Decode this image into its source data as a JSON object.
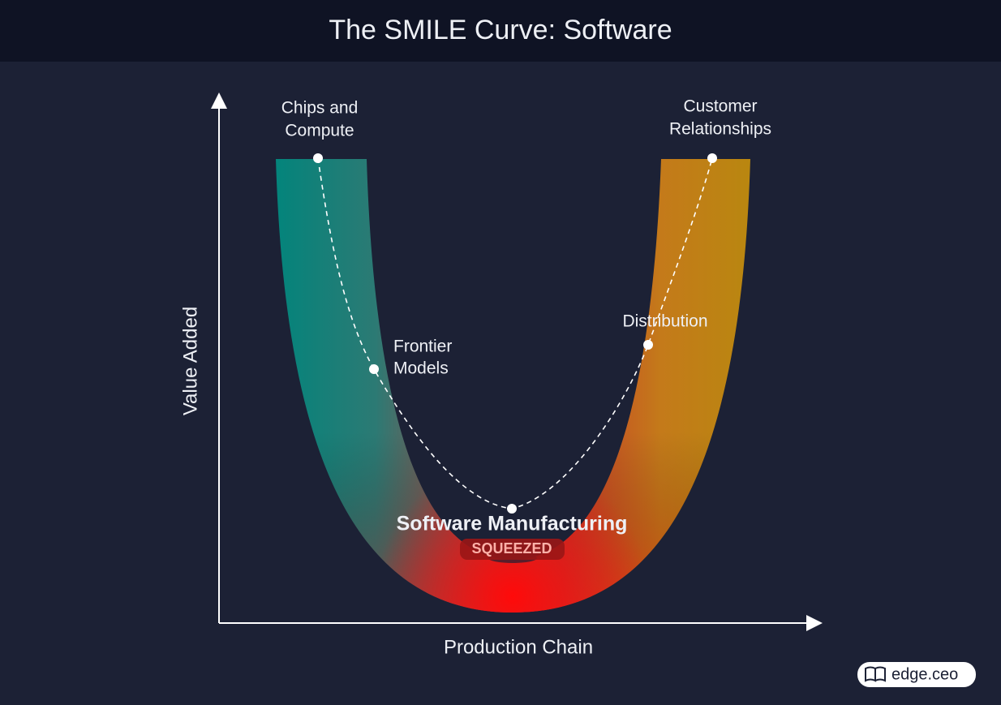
{
  "title": "The SMILE Curve: Software",
  "axes": {
    "y_label": "Value Added",
    "x_label": "Production Chain"
  },
  "stages": [
    {
      "lines": [
        "Chips and",
        "Compute"
      ]
    },
    {
      "lines": [
        "Frontier",
        "Models"
      ]
    },
    {
      "lines": [
        "Software Manufacturing"
      ],
      "badge": "SQUEEZED"
    },
    {
      "lines": [
        "Distribution"
      ]
    },
    {
      "lines": [
        "Customer",
        "Relationships"
      ]
    }
  ],
  "brand": "edge.ceo"
}
